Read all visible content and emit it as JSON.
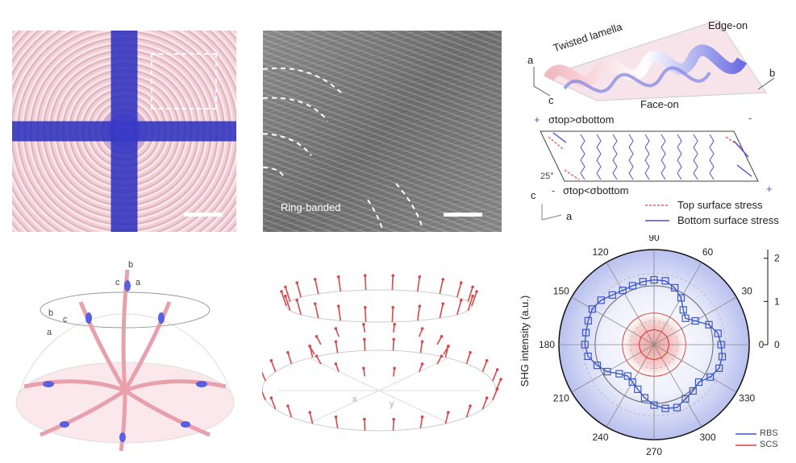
{
  "panel_a": {
    "scale_bar": ""
  },
  "panel_b": {
    "label": "Ring-banded"
  },
  "panel_c": {
    "twisted_lamella": "Twisted lamella",
    "edge_on": "Edge-on",
    "face_on": "Face-on",
    "axis_a": "a",
    "axis_b": "b",
    "axis_c": "c",
    "sigma_top_gt": "σtop>σbottom",
    "sigma_top_lt": "σtop<σbottom",
    "angle": "25°",
    "plus": "+",
    "minus": "-",
    "legend_top": "Top surface stress",
    "legend_bottom": "Bottom surface stress",
    "colors": {
      "top": "#e0606a",
      "bottom": "#4a4ed0"
    }
  },
  "panel_d": {
    "axis_labels": [
      "b",
      "c",
      "a",
      "b",
      "a",
      "c"
    ]
  },
  "panel_e": {
    "axis_labels": [
      "x",
      "y"
    ]
  },
  "chart_data": {
    "type": "polar",
    "ylabel": "SHG intensity (a.u.)",
    "angle_ticks": [
      "0",
      "30",
      "60",
      "90",
      "120",
      "150",
      "180",
      "210",
      "240",
      "270",
      "300",
      "330"
    ],
    "radial_ticks": [
      "0",
      "1",
      "2"
    ],
    "rlim": [
      0,
      2.2
    ],
    "legend": [
      "RBS",
      "SCS"
    ],
    "colors": {
      "RBS": "#3a56c8",
      "SCS": "#e04040"
    },
    "series": [
      {
        "name": "RBS",
        "theta": [
          0,
          10,
          20,
          30,
          40,
          50,
          60,
          70,
          80,
          90,
          100,
          110,
          120,
          130,
          140,
          150,
          160,
          170,
          180,
          190,
          200,
          210,
          220,
          230,
          240,
          250,
          260,
          270,
          280,
          290,
          300,
          310,
          320,
          330,
          340,
          350
        ],
        "r": [
          1.55,
          1.5,
          1.35,
          1.1,
          0.95,
          1.05,
          1.25,
          1.4,
          1.5,
          1.5,
          1.48,
          1.45,
          1.45,
          1.5,
          1.6,
          1.65,
          1.62,
          1.6,
          1.6,
          1.55,
          1.4,
          1.25,
          1.05,
          0.95,
          1.0,
          1.1,
          1.25,
          1.4,
          1.5,
          1.55,
          1.45,
          1.4,
          1.35,
          1.5,
          1.6,
          1.6
        ]
      },
      {
        "name": "SCS",
        "theta": [
          0,
          30,
          60,
          90,
          120,
          150,
          180,
          210,
          240,
          270,
          300,
          330
        ],
        "r": [
          0.35,
          0.35,
          0.35,
          0.35,
          0.35,
          0.35,
          0.35,
          0.35,
          0.35,
          0.35,
          0.35,
          0.35
        ]
      }
    ]
  }
}
